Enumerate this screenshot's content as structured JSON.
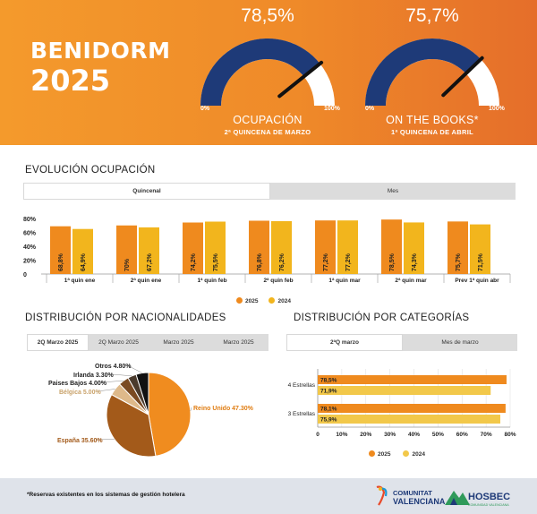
{
  "header": {
    "city": "BENIDORM",
    "year": "2025",
    "gauges": [
      {
        "value": "78,5%",
        "fraction": 0.785,
        "min": "0%",
        "max": "100%",
        "title": "OCUPACIÓN",
        "subtitle": "2ª QUINCENA DE MARZO"
      },
      {
        "value": "75,7%",
        "fraction": 0.757,
        "min": "0%",
        "max": "100%",
        "title": "ON THE BOOKS*",
        "subtitle": "1ª QUINCENA DE ABRIL"
      }
    ]
  },
  "colors": {
    "c2025": "#ef8a1e",
    "c2024": "#f2b51d",
    "gauge_fill": "#1e3a78",
    "header_orange": "#f08c2a"
  },
  "evolucion": {
    "title": "EVOLUCIÓN OCUPACIÓN",
    "tabs": [
      "Quincenal",
      "Mes"
    ],
    "active_tab": 0,
    "legend": [
      "2025",
      "2024"
    ]
  },
  "nacionalidades": {
    "title": "DISTRIBUCIÓN POR NACIONALIDADES",
    "tabs": [
      "2Q Marzo 2025",
      "2Q Marzo 2025",
      "Marzo 2025",
      "Marzo 2025"
    ],
    "active_tab": 0
  },
  "categorias": {
    "title": "DISTRIBUCIÓN POR CATEGORÍAS",
    "tabs": [
      "2ªQ marzo",
      "Mes de marzo"
    ],
    "active_tab": 0,
    "legend": [
      "2025",
      "2024"
    ]
  },
  "footer": {
    "note": "*Reservas existentes en los sistemas de gestión hotelera",
    "logo1_line1": "COMUNITAT",
    "logo1_line2": "VALENCIANA",
    "logo2_name": "HOSBEC",
    "logo2_tag": "COMUNIDAD VALENCIANA",
    "logo1_icon": "comunitat-valenciana-logo",
    "logo2_icon": "hosbec-mountain-logo"
  },
  "chart_data": [
    {
      "type": "bar",
      "categories": [
        "1ª quin ene",
        "2ª quin ene",
        "1ª quin feb",
        "2ª quin feb",
        "1ª quin mar",
        "2ª quin mar",
        "Prev 1ª quin abr"
      ],
      "series": [
        {
          "name": "2025",
          "values": [
            68.8,
            70,
            74.2,
            76.8,
            77.2,
            78.5,
            75.7
          ],
          "labels": [
            "68,8%",
            "70%",
            "74,2%",
            "76,8%",
            "77,2%",
            "78,5%",
            "75,7%"
          ]
        },
        {
          "name": "2024",
          "values": [
            64.9,
            67.2,
            75.5,
            76.2,
            77.2,
            74.3,
            71.5
          ],
          "labels": [
            "64,9%",
            "67,2%",
            "75,5%",
            "76,2%",
            "77,2%",
            "74,3%",
            "71,5%"
          ]
        }
      ],
      "yticks": [
        "0",
        "20%",
        "40%",
        "60%",
        "80%"
      ],
      "ylim": [
        0,
        100
      ]
    },
    {
      "type": "pie",
      "labels": [
        "Reino Unido 47.30%",
        "España 35.60%",
        "Bélgica 5.00%",
        "Paises Bajos 4.00%",
        "Irlanda 3.30%",
        "Otros 4.80%"
      ],
      "values": [
        47.3,
        35.6,
        5.0,
        4.0,
        3.3,
        4.8
      ],
      "colors": [
        "#f08c1f",
        "#a35a1a",
        "#deb98a",
        "#7a4a22",
        "#4a3a2c",
        "#111111"
      ]
    },
    {
      "type": "bar",
      "orientation": "horizontal",
      "categories": [
        "4 Estrellas",
        "3 Estrellas"
      ],
      "series": [
        {
          "name": "2025",
          "values": [
            78.5,
            78.1
          ],
          "labels": [
            "78,5%",
            "78,1%"
          ]
        },
        {
          "name": "2024",
          "values": [
            71.9,
            75.9
          ],
          "labels": [
            "71,9%",
            "75,9%"
          ]
        }
      ],
      "xticks": [
        "0",
        "10%",
        "20%",
        "30%",
        "40%",
        "50%",
        "60%",
        "70%",
        "80%"
      ],
      "xlim": [
        0,
        80
      ]
    }
  ]
}
